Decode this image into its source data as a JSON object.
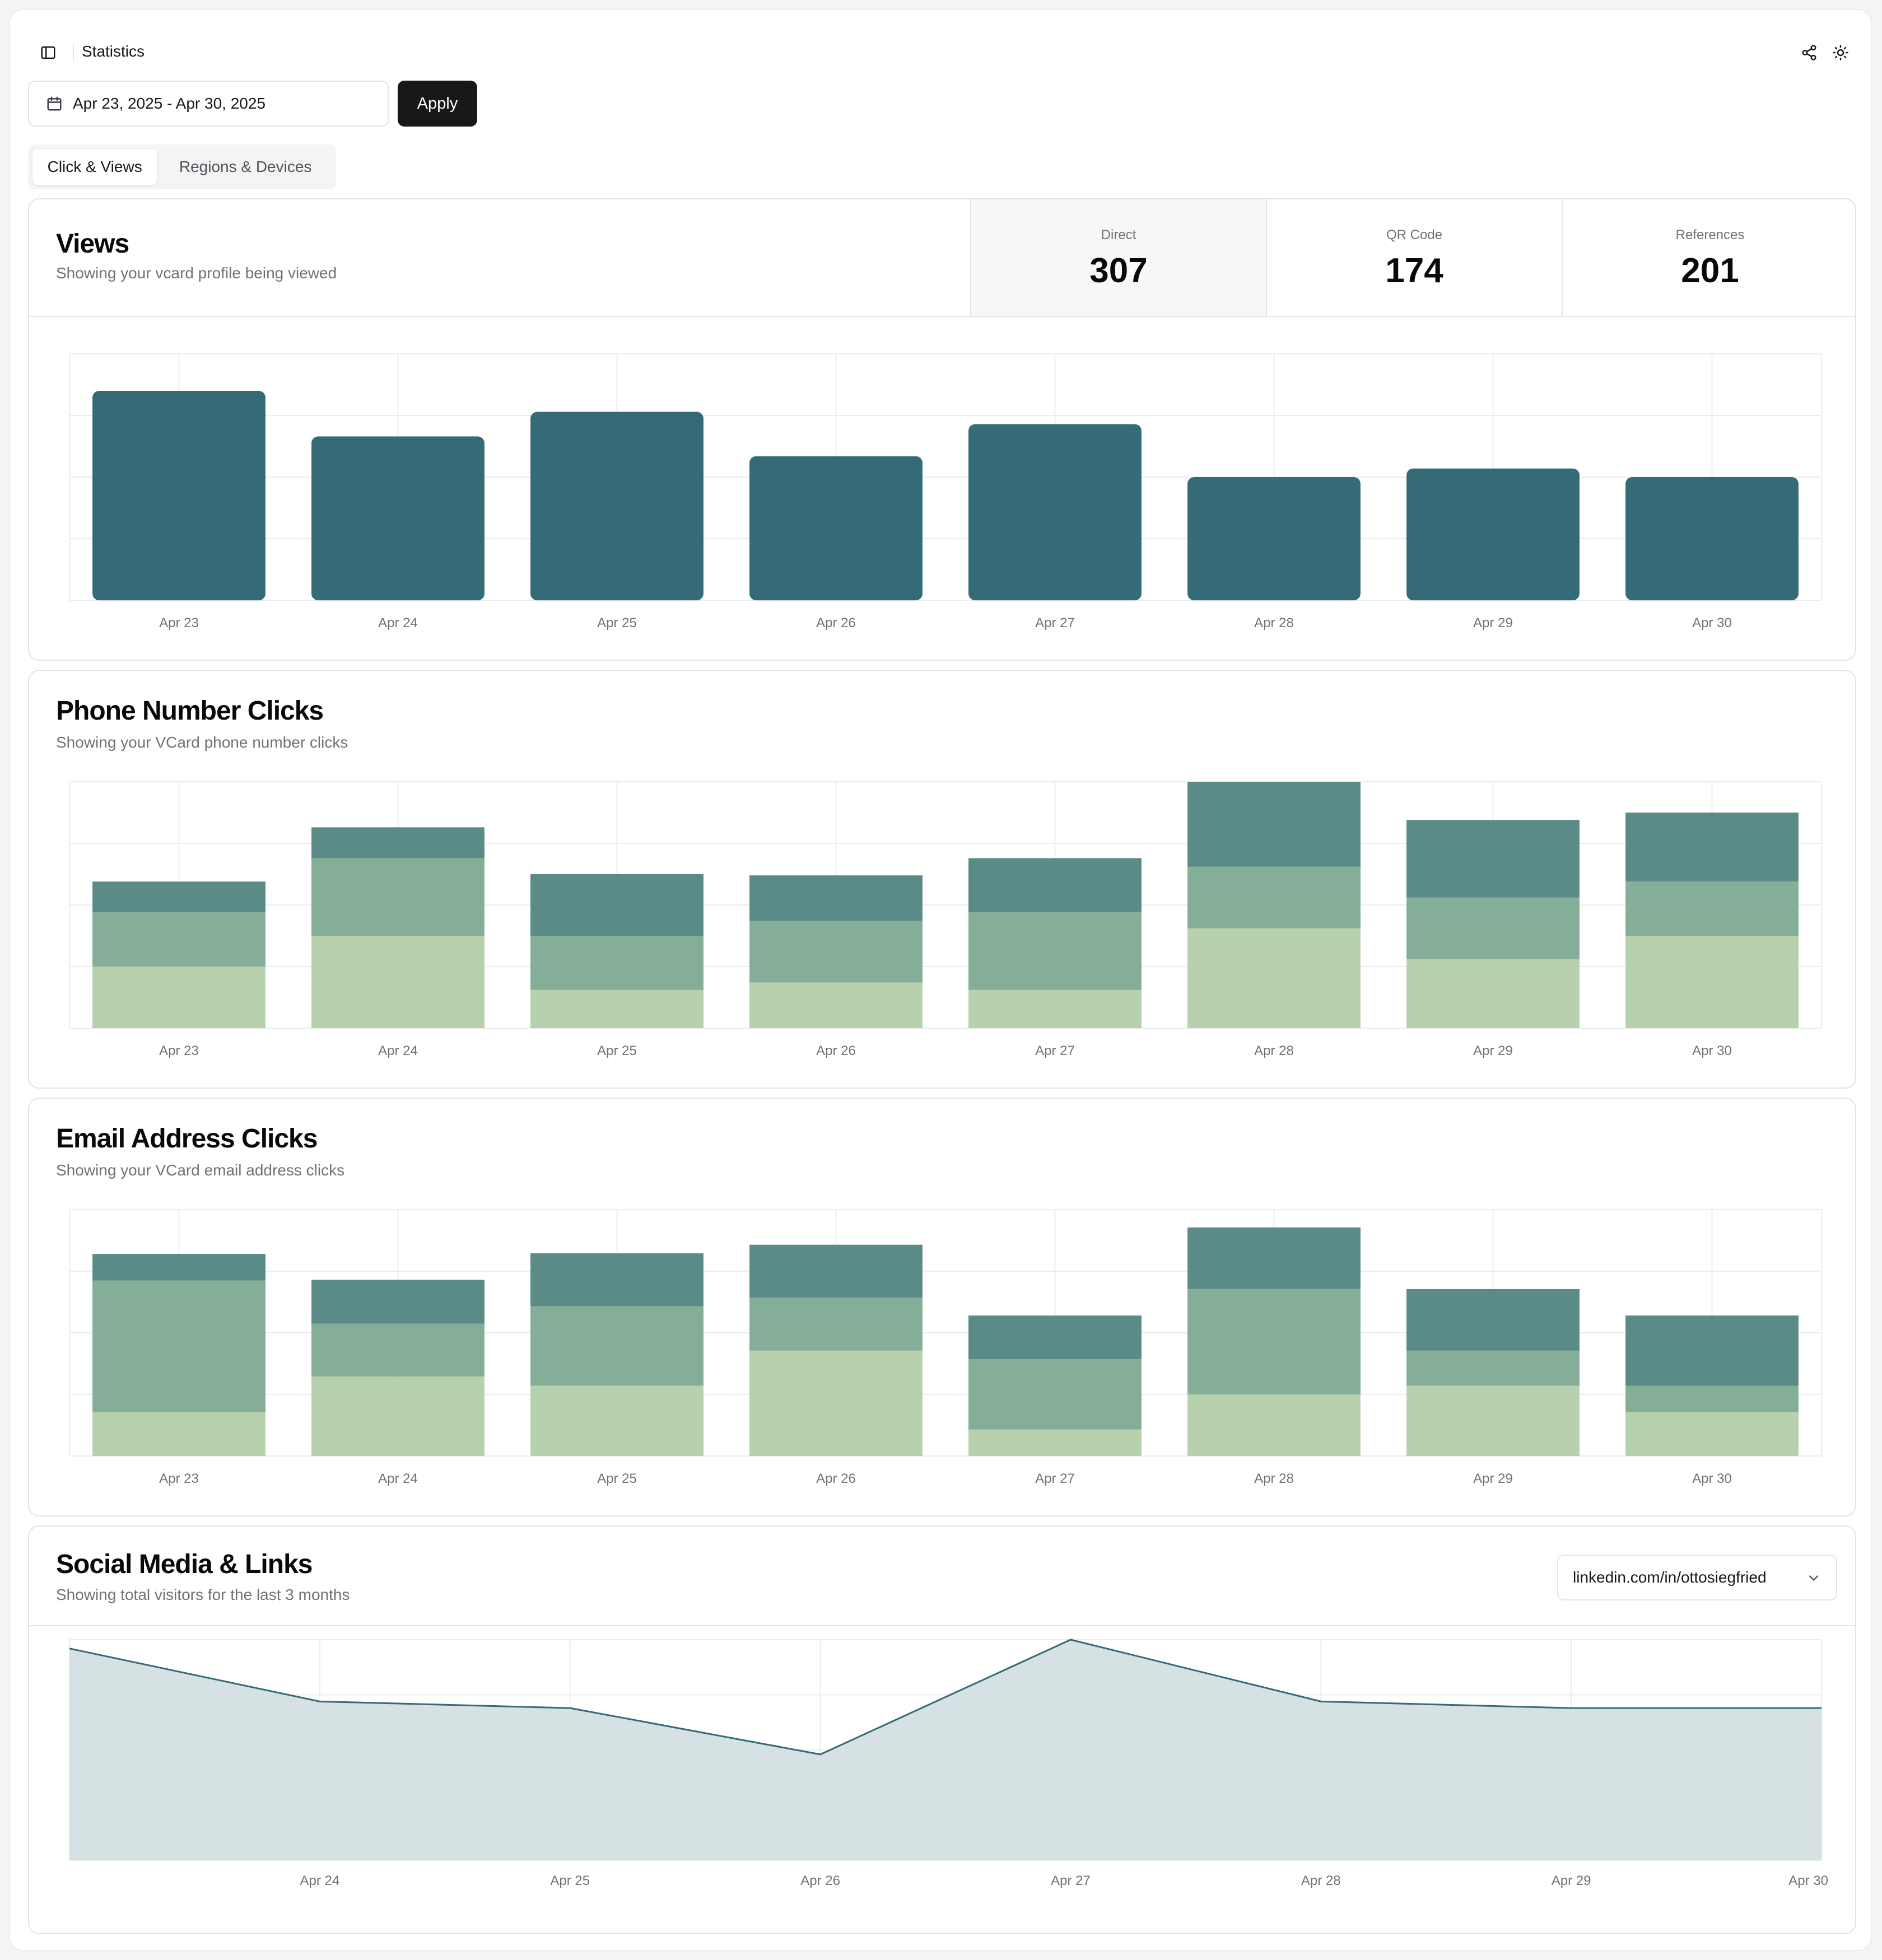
{
  "header": {
    "title": "Statistics"
  },
  "filters": {
    "date_range": "Apr 23, 2025 - Apr 30, 2025",
    "apply_label": "Apply"
  },
  "tabs": [
    {
      "label": "Click & Views"
    },
    {
      "label": "Regions & Devices"
    }
  ],
  "colors": {
    "views_bar": "#346b77",
    "seg_dark": "#5a8b86",
    "seg_mid": "#84ae98",
    "seg_light": "#b7d1ae",
    "line": "#346b77",
    "area": "#d5e1e3",
    "grid": "#ececee",
    "tick": "#71717a"
  },
  "views": {
    "title": "Views",
    "subtitle": "Showing your vcard profile being viewed",
    "stats": [
      {
        "label": "Direct",
        "value": "307"
      },
      {
        "label": "QR Code",
        "value": "174"
      },
      {
        "label": "References",
        "value": "201"
      }
    ]
  },
  "phone": {
    "title": "Phone Number Clicks",
    "subtitle": "Showing your VCard phone number clicks"
  },
  "email": {
    "title": "Email Address Clicks",
    "subtitle": "Showing your VCard email address clicks"
  },
  "social": {
    "title": "Social Media & Links",
    "subtitle": "Showing total visitors for the last 3 months",
    "selected_link": "linkedin.com/in/ottosiegfried"
  },
  "chart_data": [
    {
      "id": "views",
      "type": "bar",
      "categories": [
        "Apr 23",
        "Apr 24",
        "Apr 25",
        "Apr 26",
        "Apr 27",
        "Apr 28",
        "Apr 29",
        "Apr 30"
      ],
      "values": [
        340,
        266,
        306,
        234,
        286,
        200,
        214,
        200
      ],
      "ylim": [
        0,
        400
      ],
      "grid": true
    },
    {
      "id": "phone",
      "type": "bar",
      "stacked": true,
      "categories": [
        "Apr 23",
        "Apr 24",
        "Apr 25",
        "Apr 26",
        "Apr 27",
        "Apr 28",
        "Apr 29",
        "Apr 30"
      ],
      "series": [
        {
          "name": "light",
          "values": [
            100,
            150,
            62,
            74,
            62,
            162,
            112,
            150
          ]
        },
        {
          "name": "mid",
          "values": [
            88,
            126,
            88,
            100,
            126,
            100,
            100,
            88
          ]
        },
        {
          "name": "dark",
          "values": [
            50,
            50,
            100,
            74,
            88,
            138,
            126,
            112
          ]
        }
      ],
      "ylim": [
        0,
        400
      ],
      "grid": true
    },
    {
      "id": "email",
      "type": "bar",
      "stacked": true,
      "categories": [
        "Apr 23",
        "Apr 24",
        "Apr 25",
        "Apr 26",
        "Apr 27",
        "Apr 28",
        "Apr 29",
        "Apr 30"
      ],
      "series": [
        {
          "name": "light",
          "values": [
            71,
            129,
            114,
            171,
            43,
            100,
            114,
            71
          ]
        },
        {
          "name": "mid",
          "values": [
            214,
            86,
            129,
            86,
            114,
            171,
            57,
            43
          ]
        },
        {
          "name": "dark",
          "values": [
            43,
            71,
            86,
            86,
            71,
            100,
            100,
            114
          ]
        }
      ],
      "ylim": [
        0,
        400
      ],
      "grid": true
    },
    {
      "id": "social",
      "type": "area",
      "categories": [
        "Apr 23",
        "Apr 24",
        "Apr 25",
        "Apr 26",
        "Apr 27",
        "Apr 28",
        "Apr 29",
        "Apr 30"
      ],
      "values": [
        96,
        72,
        69,
        48,
        100,
        72,
        69,
        69
      ],
      "tick_labels": [
        "",
        "Apr 24",
        "Apr 25",
        "Apr 26",
        "Apr 27",
        "Apr 28",
        "Apr 29",
        "Apr 30"
      ],
      "ylim": [
        0,
        100
      ],
      "grid": true
    }
  ]
}
